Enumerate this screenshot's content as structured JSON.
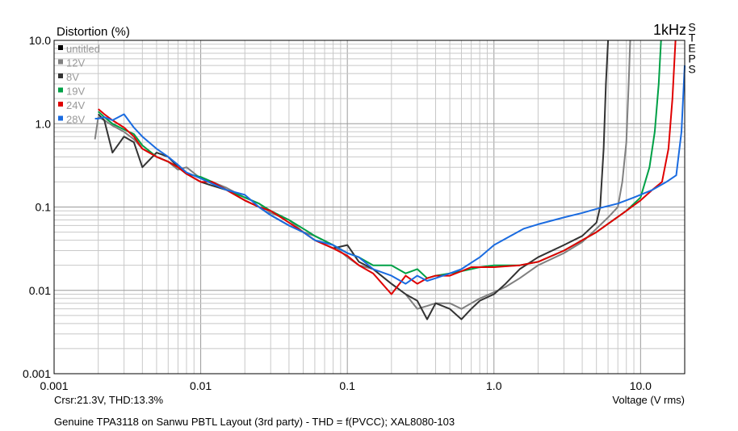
{
  "chart_data": {
    "type": "line",
    "ylabel": "Distortion (%)",
    "xlabel": "Voltage (V rms)",
    "corner_label": "1kHz",
    "side_label": "STEPS",
    "cursor_readout": "Crsr:21.3V, THD:13.3%",
    "caption": "Genuine TPA3118 on Sanwu PBTL Layout (3rd party) - THD = f(PVCC); XAL8080-103",
    "x_scale": "log",
    "y_scale": "log",
    "xlim": [
      0.001,
      20
    ],
    "ylim": [
      0.001,
      10
    ],
    "x_ticks": [
      {
        "value": 0.001,
        "label": "0.001"
      },
      {
        "value": 0.01,
        "label": "0.01"
      },
      {
        "value": 0.1,
        "label": "0.1"
      },
      {
        "value": 1,
        "label": "1.0"
      },
      {
        "value": 10,
        "label": "10.0"
      }
    ],
    "y_ticks": [
      {
        "value": 10,
        "label": "10.0"
      },
      {
        "value": 1,
        "label": "1.0"
      },
      {
        "value": 0.1,
        "label": "0.1"
      },
      {
        "value": 0.01,
        "label": "0.01"
      },
      {
        "value": 0.001,
        "label": "0.001"
      }
    ],
    "grid": true,
    "legend_position": "top-left",
    "series": [
      {
        "name": "untitled",
        "color": "#000000",
        "x": [],
        "y": []
      },
      {
        "name": "12V",
        "color": "#808080",
        "x": [
          0.0019,
          0.002,
          0.0022,
          0.0025,
          0.003,
          0.0035,
          0.004,
          0.005,
          0.006,
          0.007,
          0.008,
          0.01,
          0.012,
          0.015,
          0.02,
          0.025,
          0.03,
          0.04,
          0.05,
          0.06,
          0.08,
          0.1,
          0.12,
          0.15,
          0.2,
          0.25,
          0.3,
          0.35,
          0.4,
          0.5,
          0.6,
          0.7,
          0.8,
          1.0,
          1.2,
          1.5,
          2.0,
          3.0,
          4.0,
          5.0,
          6.0,
          7.0,
          7.5,
          8.0,
          8.3,
          8.5
        ],
        "y": [
          0.65,
          1.2,
          1.1,
          0.95,
          0.8,
          0.65,
          0.5,
          0.4,
          0.35,
          0.28,
          0.3,
          0.22,
          0.2,
          0.17,
          0.13,
          0.11,
          0.085,
          0.07,
          0.05,
          0.045,
          0.035,
          0.025,
          0.02,
          0.018,
          0.012,
          0.009,
          0.006,
          0.0065,
          0.007,
          0.007,
          0.006,
          0.007,
          0.008,
          0.0095,
          0.011,
          0.014,
          0.02,
          0.028,
          0.038,
          0.055,
          0.075,
          0.1,
          0.2,
          0.6,
          3.0,
          10
        ]
      },
      {
        "name": "8V",
        "color": "#333333",
        "x": [
          0.002,
          0.0022,
          0.0025,
          0.003,
          0.0035,
          0.004,
          0.005,
          0.006,
          0.007,
          0.008,
          0.01,
          0.012,
          0.015,
          0.02,
          0.025,
          0.03,
          0.04,
          0.05,
          0.06,
          0.08,
          0.1,
          0.12,
          0.15,
          0.2,
          0.25,
          0.3,
          0.35,
          0.4,
          0.5,
          0.6,
          0.7,
          0.8,
          1.0,
          1.2,
          1.5,
          2.0,
          3.0,
          4.0,
          5.0,
          5.3,
          5.6,
          5.8,
          6.0
        ],
        "y": [
          1.3,
          1.1,
          0.45,
          0.7,
          0.6,
          0.3,
          0.45,
          0.4,
          0.3,
          0.25,
          0.2,
          0.18,
          0.16,
          0.12,
          0.1,
          0.08,
          0.06,
          0.05,
          0.04,
          0.032,
          0.035,
          0.022,
          0.018,
          0.012,
          0.009,
          0.0075,
          0.0045,
          0.007,
          0.006,
          0.0045,
          0.006,
          0.0075,
          0.009,
          0.012,
          0.018,
          0.025,
          0.035,
          0.045,
          0.065,
          0.1,
          0.5,
          3.0,
          10
        ]
      },
      {
        "name": "19V",
        "color": "#00a046",
        "x": [
          0.002,
          0.0022,
          0.0025,
          0.003,
          0.0035,
          0.004,
          0.005,
          0.006,
          0.007,
          0.008,
          0.01,
          0.012,
          0.015,
          0.02,
          0.025,
          0.03,
          0.04,
          0.05,
          0.06,
          0.08,
          0.1,
          0.12,
          0.15,
          0.2,
          0.25,
          0.3,
          0.35,
          0.4,
          0.5,
          0.6,
          0.7,
          0.8,
          1.0,
          1.5,
          2.0,
          3.0,
          5.0,
          8.0,
          10.0,
          11.5,
          12.5,
          13.3,
          13.8
        ],
        "y": [
          1.4,
          1.2,
          1.0,
          0.85,
          0.75,
          0.55,
          0.4,
          0.35,
          0.3,
          0.25,
          0.23,
          0.2,
          0.16,
          0.13,
          0.11,
          0.09,
          0.07,
          0.055,
          0.045,
          0.035,
          0.028,
          0.025,
          0.02,
          0.02,
          0.016,
          0.018,
          0.014,
          0.015,
          0.016,
          0.017,
          0.018,
          0.019,
          0.02,
          0.02,
          0.022,
          0.03,
          0.05,
          0.09,
          0.13,
          0.3,
          0.8,
          3.0,
          10
        ]
      },
      {
        "name": "24V",
        "color": "#e00000",
        "x": [
          0.002,
          0.0022,
          0.0025,
          0.003,
          0.0035,
          0.004,
          0.005,
          0.006,
          0.007,
          0.008,
          0.01,
          0.012,
          0.015,
          0.02,
          0.025,
          0.03,
          0.04,
          0.05,
          0.06,
          0.08,
          0.1,
          0.12,
          0.15,
          0.2,
          0.25,
          0.3,
          0.35,
          0.4,
          0.5,
          0.6,
          0.7,
          0.8,
          1.0,
          1.5,
          2.0,
          3.0,
          5.0,
          8.0,
          10.0,
          12.0,
          14.0,
          15.5,
          16.5,
          17.3
        ],
        "y": [
          1.5,
          1.3,
          1.1,
          0.9,
          0.7,
          0.5,
          0.4,
          0.35,
          0.3,
          0.25,
          0.2,
          0.2,
          0.16,
          0.12,
          0.1,
          0.09,
          0.065,
          0.05,
          0.04,
          0.032,
          0.026,
          0.02,
          0.016,
          0.009,
          0.015,
          0.012,
          0.014,
          0.015,
          0.015,
          0.017,
          0.019,
          0.019,
          0.019,
          0.02,
          0.022,
          0.03,
          0.05,
          0.09,
          0.12,
          0.16,
          0.2,
          0.5,
          2.0,
          10
        ]
      },
      {
        "name": "28V",
        "color": "#1a6be0",
        "x": [
          0.0019,
          0.002,
          0.0022,
          0.0025,
          0.003,
          0.0035,
          0.004,
          0.005,
          0.006,
          0.007,
          0.008,
          0.01,
          0.012,
          0.015,
          0.02,
          0.025,
          0.03,
          0.04,
          0.05,
          0.06,
          0.08,
          0.1,
          0.12,
          0.15,
          0.2,
          0.25,
          0.3,
          0.35,
          0.4,
          0.5,
          0.6,
          0.8,
          1.0,
          1.3,
          1.6,
          2.0,
          3.0,
          4.0,
          5.0,
          7.0,
          9.0,
          12.0,
          15.0,
          17.5,
          19.0,
          20.0
        ],
        "y": [
          1.15,
          1.15,
          1.2,
          1.1,
          1.3,
          0.9,
          0.7,
          0.5,
          0.4,
          0.32,
          0.26,
          0.22,
          0.19,
          0.16,
          0.14,
          0.1,
          0.08,
          0.06,
          0.05,
          0.04,
          0.035,
          0.028,
          0.025,
          0.018,
          0.015,
          0.012,
          0.015,
          0.013,
          0.014,
          0.016,
          0.018,
          0.025,
          0.035,
          0.045,
          0.055,
          0.062,
          0.075,
          0.085,
          0.095,
          0.11,
          0.13,
          0.16,
          0.2,
          0.24,
          0.8,
          5.0
        ]
      }
    ]
  }
}
